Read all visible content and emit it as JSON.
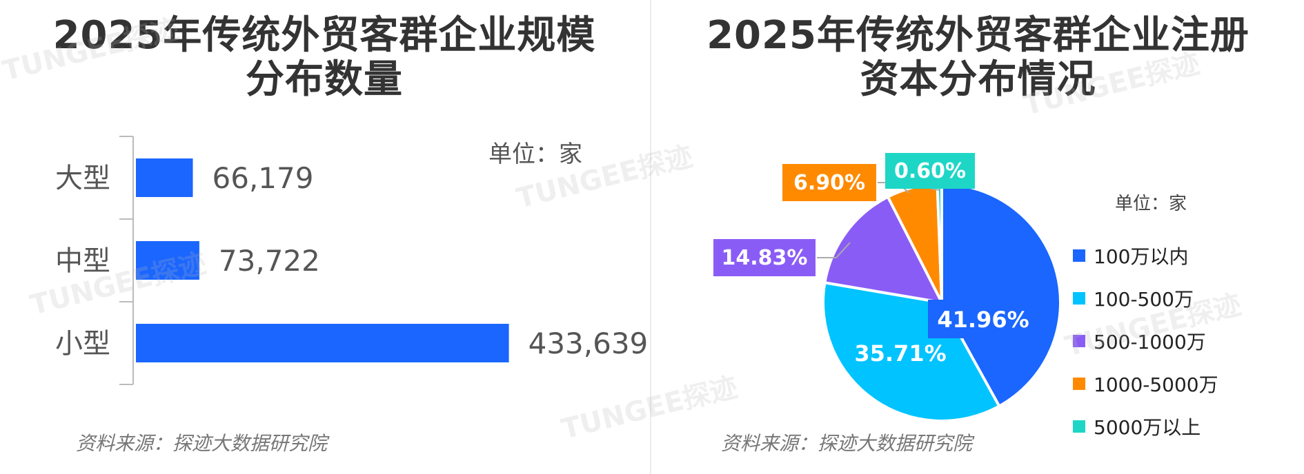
{
  "left_panel": {
    "title_line1": "2025年传统外贸客群企业规模",
    "title_line2": "分布数量",
    "unit": "单位：家",
    "source": "资料来源：探迹大数据研究院"
  },
  "right_panel": {
    "title_line1": "2025年传统外贸客群企业注册",
    "title_line2": "资本分布情况",
    "unit": "单位：家",
    "source": "资料来源：探迹大数据研究院"
  },
  "watermark": "TUNGEE探迹",
  "chart_data": [
    {
      "type": "bar",
      "orientation": "horizontal",
      "categories": [
        "大型",
        "中型",
        "小型"
      ],
      "values": [
        66179,
        73722,
        433639
      ],
      "value_labels": [
        "66,179",
        "73,722",
        "433,639"
      ],
      "color": "#1a66ff",
      "xlim": [
        0,
        600000
      ]
    },
    {
      "type": "pie",
      "labels": [
        "100万以内",
        "100-500万",
        "500-1000万",
        "1000-5000万",
        "5000万以上"
      ],
      "values": [
        41.96,
        35.71,
        14.83,
        6.9,
        0.6
      ],
      "value_labels": [
        "41.96%",
        "35.71%",
        "14.83%",
        "6.90%",
        "0.60%"
      ],
      "colors": [
        "#1a66ff",
        "#00c3ff",
        "#8a5cf6",
        "#ff8a00",
        "#1ed6c6"
      ],
      "legend_position": "right"
    }
  ]
}
